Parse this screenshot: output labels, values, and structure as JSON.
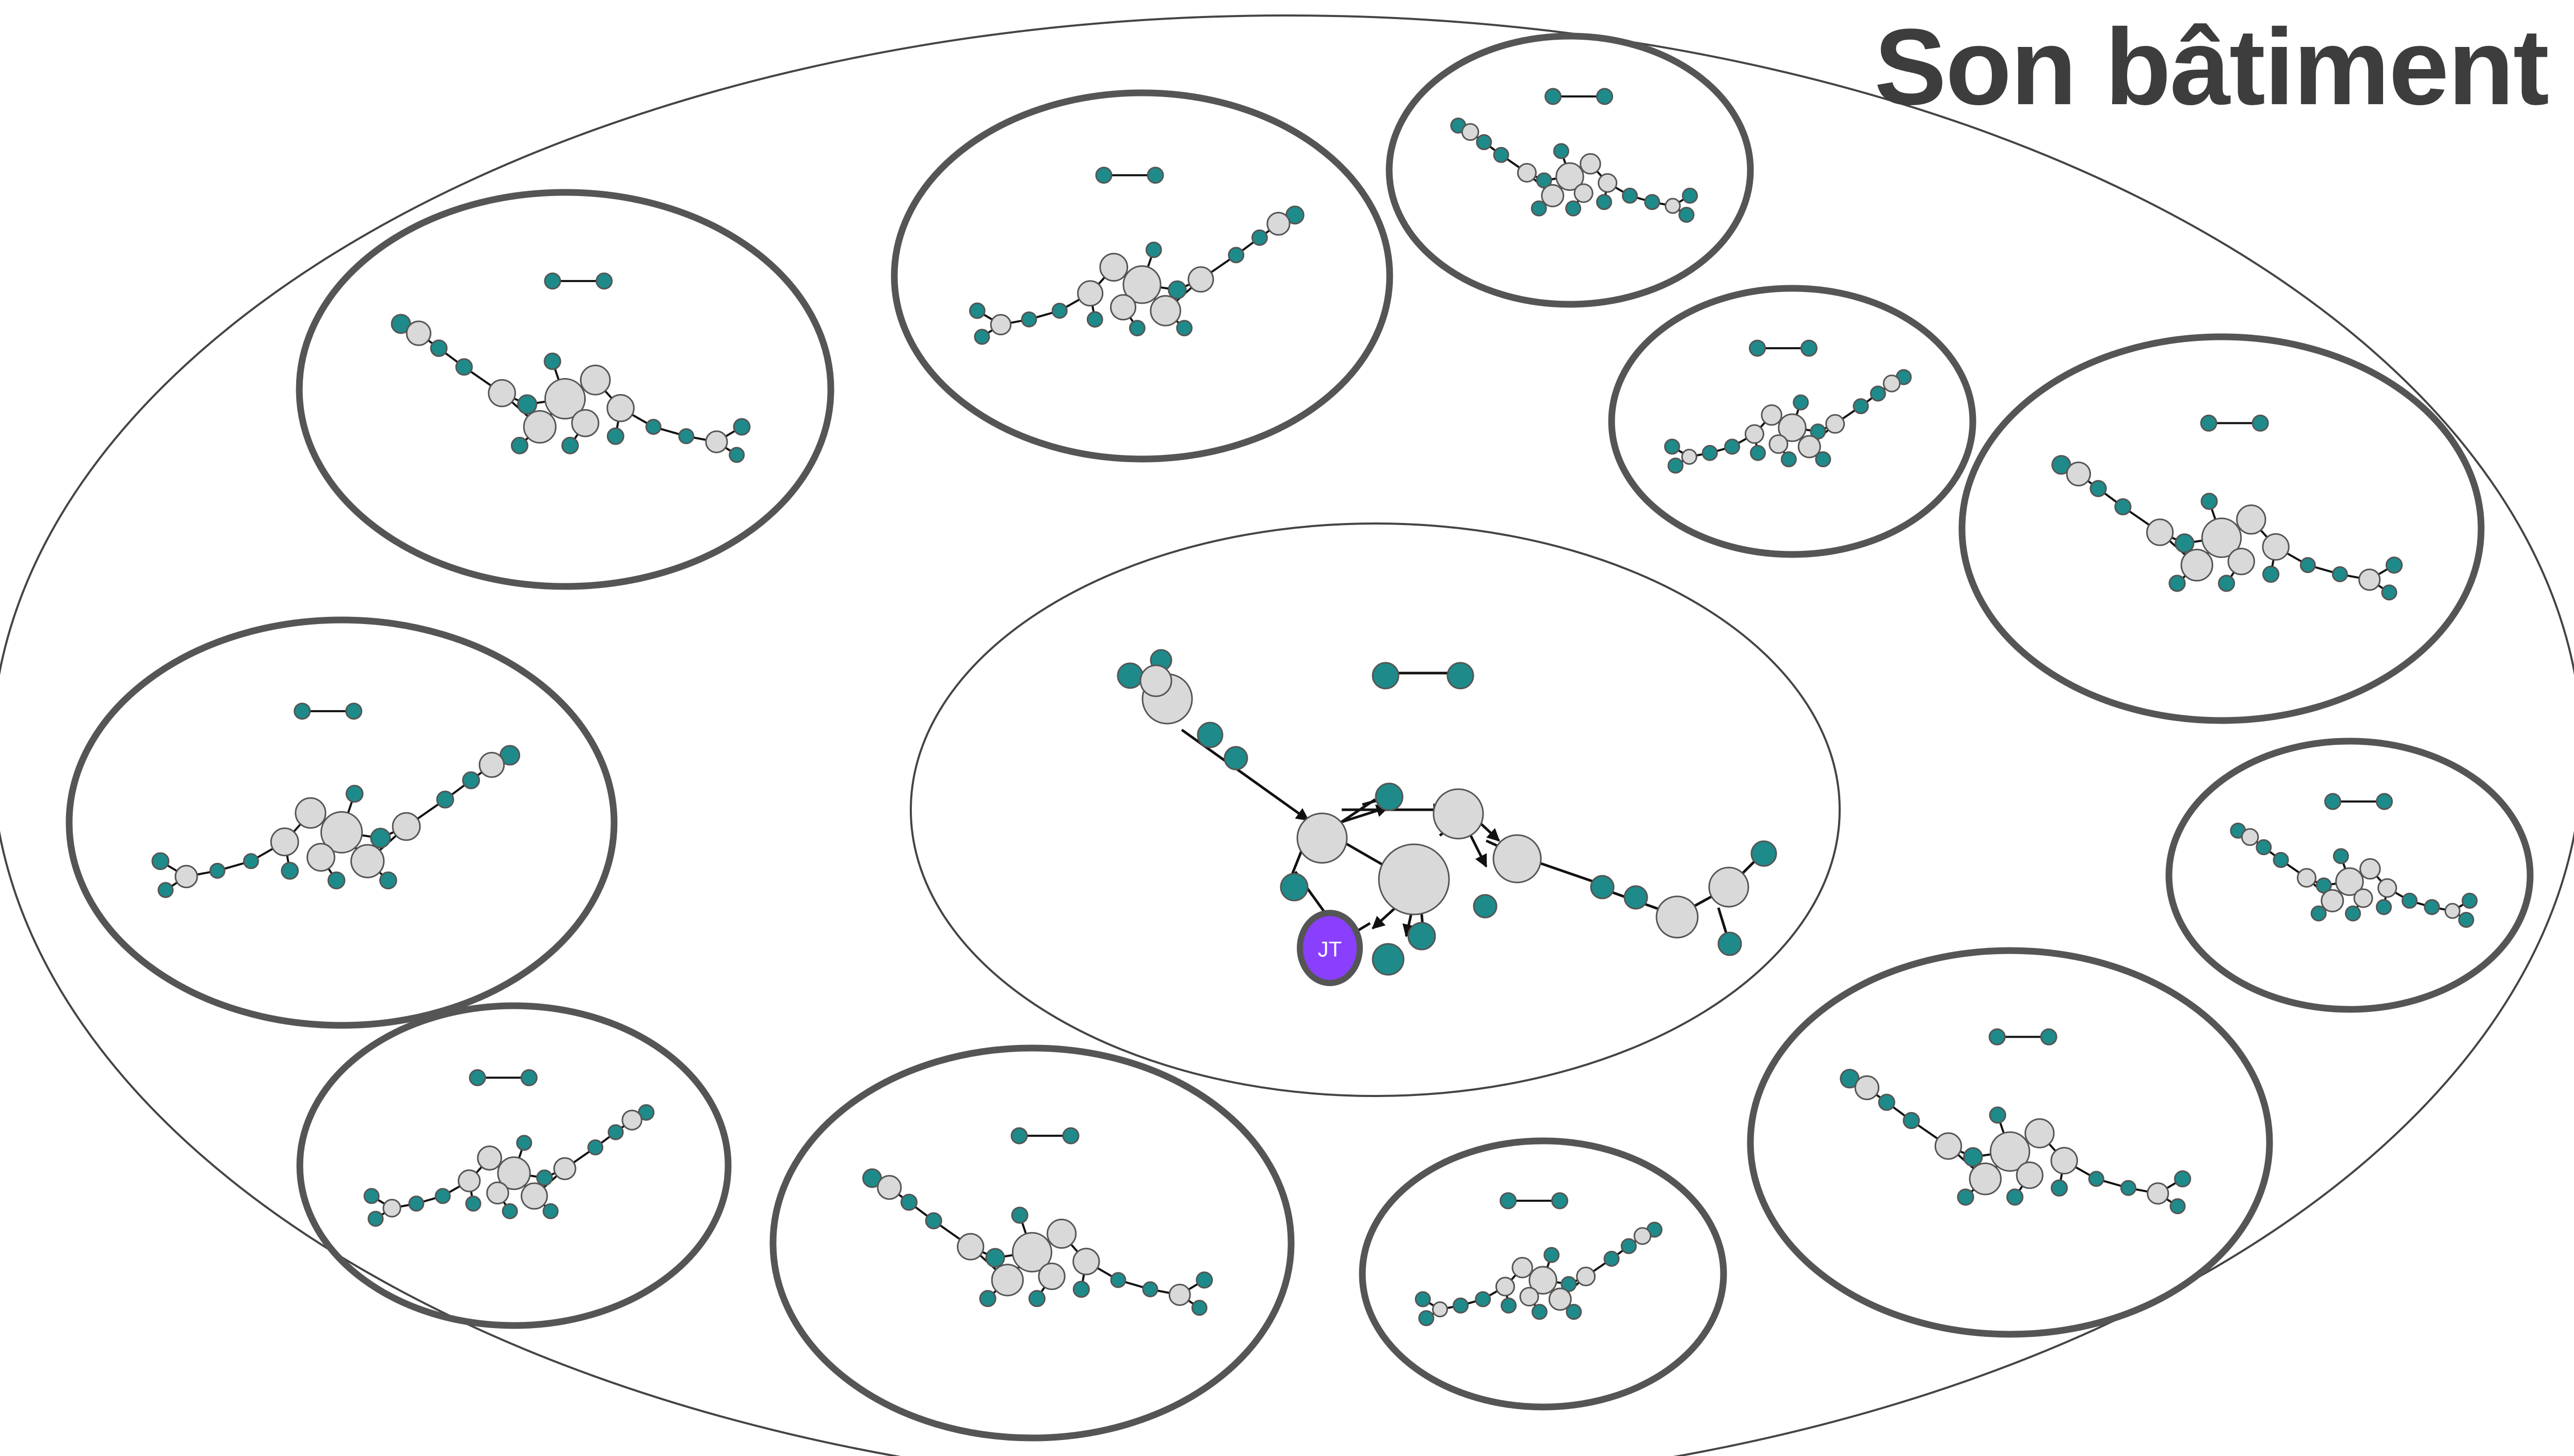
{
  "title": "Son bâtiment",
  "highlight": {
    "label": "JT",
    "color": "#8a3ffc"
  },
  "colors": {
    "teal": "#1f8a8a",
    "gray": "#d9d9d9",
    "outline": "#555555",
    "edge": "#111111"
  }
}
